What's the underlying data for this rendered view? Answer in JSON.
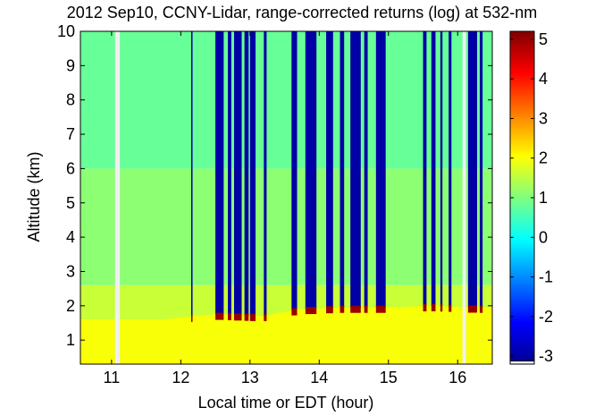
{
  "chart_data": {
    "type": "heatmap",
    "title": "2012 Sep10, CCNY-Lidar, range-corrected returns (log) at 532-nm",
    "xlabel": "Local time or EDT (hour)",
    "ylabel": "Altitude (km)",
    "xlim": [
      10.55,
      16.5
    ],
    "ylim": [
      0.3,
      10.0
    ],
    "x_ticks": [
      11,
      12,
      13,
      14,
      15,
      16
    ],
    "y_ticks": [
      1,
      2,
      3,
      4,
      5,
      6,
      7,
      8,
      9,
      10
    ],
    "colorbar": {
      "range": [
        -3.2,
        5.2
      ],
      "ticks": [
        5,
        4,
        3,
        2,
        1,
        0,
        -1,
        -2,
        -3
      ],
      "colormap": "jet",
      "nodata_color": "#f0f0f0"
    },
    "background_levels": [
      {
        "alt_from": 0.3,
        "alt_to": 1.6,
        "value": 2.0
      },
      {
        "alt_from": 1.6,
        "alt_to": 2.6,
        "value": 1.6
      },
      {
        "alt_from": 2.6,
        "alt_to": 6.0,
        "value": 1.1
      },
      {
        "alt_from": 6.0,
        "alt_to": 10.0,
        "value": 0.8
      }
    ],
    "no_data_gaps": [
      [
        11.05,
        11.12
      ],
      [
        16.07,
        16.12
      ]
    ],
    "boundary_layer_top_km": [
      {
        "t": 10.9,
        "alt": 1.55
      },
      {
        "t": 11.7,
        "alt": 1.6
      },
      {
        "t": 12.5,
        "alt": 1.75
      },
      {
        "t": 13.2,
        "alt": 1.7
      },
      {
        "t": 13.7,
        "alt": 1.9
      },
      {
        "t": 14.3,
        "alt": 1.95
      },
      {
        "t": 15.0,
        "alt": 1.95
      },
      {
        "t": 15.6,
        "alt": 2.0
      },
      {
        "t": 16.3,
        "alt": 1.95
      }
    ],
    "cloud_signal_value": 5.0,
    "attenuated_signal_value": -3.0,
    "cloud_columns": [
      {
        "t0": 12.15,
        "t1": 12.17
      },
      {
        "t0": 12.5,
        "t1": 12.62
      },
      {
        "t0": 12.68,
        "t1": 12.73
      },
      {
        "t0": 12.77,
        "t1": 12.88
      },
      {
        "t0": 12.92,
        "t1": 12.98
      },
      {
        "t0": 13.0,
        "t1": 13.08
      },
      {
        "t0": 13.2,
        "t1": 13.24
      },
      {
        "t0": 13.6,
        "t1": 13.68
      },
      {
        "t0": 13.8,
        "t1": 13.96
      },
      {
        "t0": 14.1,
        "t1": 14.2
      },
      {
        "t0": 14.3,
        "t1": 14.36
      },
      {
        "t0": 14.45,
        "t1": 14.6
      },
      {
        "t0": 14.65,
        "t1": 14.7
      },
      {
        "t0": 14.82,
        "t1": 14.96
      },
      {
        "t0": 15.5,
        "t1": 15.55
      },
      {
        "t0": 15.62,
        "t1": 15.68
      },
      {
        "t0": 15.75,
        "t1": 15.78
      },
      {
        "t0": 15.87,
        "t1": 15.91
      },
      {
        "t0": 16.15,
        "t1": 16.28
      },
      {
        "t0": 16.32,
        "t1": 16.36
      }
    ],
    "grid": false
  }
}
